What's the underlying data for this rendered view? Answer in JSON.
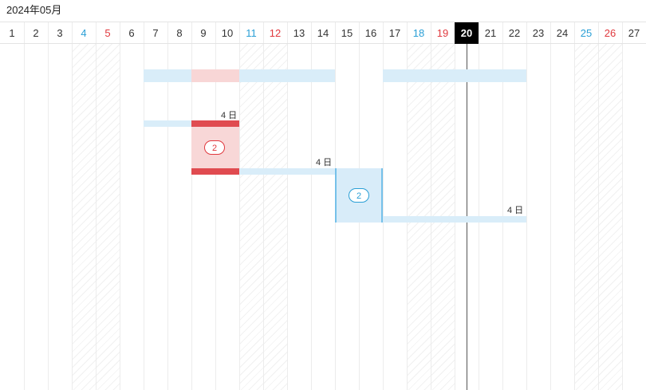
{
  "header": {
    "month_title": "2024年05月"
  },
  "days": [
    {
      "label": "1",
      "kind": "weekday"
    },
    {
      "label": "2",
      "kind": "weekday"
    },
    {
      "label": "3",
      "kind": "weekday"
    },
    {
      "label": "4",
      "kind": "sat"
    },
    {
      "label": "5",
      "kind": "sun"
    },
    {
      "label": "6",
      "kind": "weekday"
    },
    {
      "label": "7",
      "kind": "weekday"
    },
    {
      "label": "8",
      "kind": "weekday"
    },
    {
      "label": "9",
      "kind": "weekday"
    },
    {
      "label": "10",
      "kind": "weekday"
    },
    {
      "label": "11",
      "kind": "sat"
    },
    {
      "label": "12",
      "kind": "sun"
    },
    {
      "label": "13",
      "kind": "weekday"
    },
    {
      "label": "14",
      "kind": "weekday"
    },
    {
      "label": "15",
      "kind": "weekday"
    },
    {
      "label": "16",
      "kind": "weekday"
    },
    {
      "label": "17",
      "kind": "weekday"
    },
    {
      "label": "18",
      "kind": "sat"
    },
    {
      "label": "19",
      "kind": "sun"
    },
    {
      "label": "20",
      "kind": "today"
    },
    {
      "label": "21",
      "kind": "weekday"
    },
    {
      "label": "22",
      "kind": "weekday"
    },
    {
      "label": "23",
      "kind": "weekday"
    },
    {
      "label": "24",
      "kind": "weekday"
    },
    {
      "label": "25",
      "kind": "sat"
    },
    {
      "label": "26",
      "kind": "sun"
    },
    {
      "label": "27",
      "kind": "weekday"
    }
  ],
  "tasks": [
    {
      "count": "2",
      "duration": "4 日",
      "color": "#e04b50"
    },
    {
      "count": "2",
      "duration": "4 日",
      "color": "#76c1ea"
    },
    {
      "duration": "4 日"
    }
  ],
  "colors": {
    "saturday": "#2a9fd6",
    "sunday": "#e0393e",
    "today_bg": "#000000",
    "bar_blue": "#d6ebf8",
    "bar_pink": "#f8d6d6",
    "task_red": "#e04b50"
  }
}
